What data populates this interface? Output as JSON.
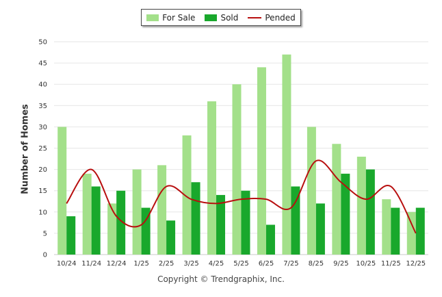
{
  "chart_data": {
    "type": "bar",
    "categories": [
      "10/24",
      "11/24",
      "12/24",
      "1/25",
      "2/25",
      "3/25",
      "4/25",
      "5/25",
      "6/25",
      "7/25",
      "8/25",
      "9/25",
      "10/25",
      "11/25",
      "12/25"
    ],
    "series": [
      {
        "name": "For Sale",
        "type": "bar",
        "color": "#a3e08a",
        "values": [
          30,
          19,
          12,
          20,
          21,
          28,
          36,
          40,
          44,
          47,
          30,
          26,
          23,
          13,
          10
        ]
      },
      {
        "name": "Sold",
        "type": "bar",
        "color": "#19a82c",
        "values": [
          9,
          16,
          15,
          11,
          8,
          17,
          14,
          15,
          7,
          16,
          12,
          19,
          20,
          11,
          11
        ]
      },
      {
        "name": "Pended",
        "type": "line",
        "color": "#b80f0f",
        "values": [
          12,
          20,
          9,
          7,
          16,
          13,
          12,
          13,
          13,
          11,
          22,
          17,
          13,
          16,
          5
        ]
      }
    ],
    "ylabel": "Number of Homes",
    "xlabel": "",
    "ylim": [
      0,
      50
    ],
    "yticks": [
      0,
      5,
      10,
      15,
      20,
      25,
      30,
      35,
      40,
      45,
      50
    ],
    "grid": true,
    "legend_position": "top-center"
  },
  "footer": {
    "copyright": "Copyright © Trendgraphix, Inc."
  }
}
